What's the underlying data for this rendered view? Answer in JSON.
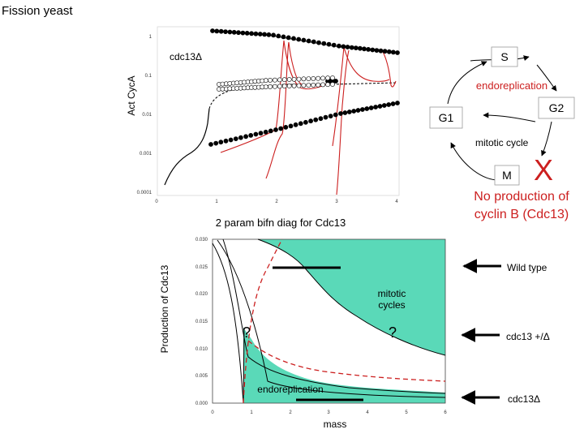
{
  "slide": {
    "title": "Fission yeast"
  },
  "colors": {
    "accent_red": "#cc1f1f",
    "teal_fill": "#5ad9b8",
    "dark": "#000000"
  },
  "top_chart": {
    "ylabel": "Act CycA",
    "annotation": "cdc13Δ",
    "y_ticks": [
      "1",
      "0.1",
      "0.01",
      "0.001",
      "0.0001"
    ],
    "x_ticks": [
      "0",
      "1",
      "2",
      "3",
      "4"
    ]
  },
  "cycle_diagram": {
    "phase_s": "S",
    "phase_g1": "G1",
    "phase_g2": "G2",
    "phase_m": "M",
    "endoreplication": "endoreplication",
    "mitotic_cycle": "mitotic cycle",
    "block_mark": "X",
    "note_line1": "No production of",
    "note_line2": "cyclin B (Cdc13)"
  },
  "bottom_chart": {
    "title": "2 param bifn diag for Cdc13",
    "ylabel": "Production of Cdc13",
    "xlabel": "mass",
    "y_ticks": [
      "0.030",
      "0.025",
      "0.020",
      "0.015",
      "0.010",
      "0.005",
      "0.000"
    ],
    "x_ticks": [
      "0",
      "1",
      "2",
      "3",
      "4",
      "5",
      "6"
    ],
    "label_mitotic": "mitotic cycles",
    "label_endo": "endoreplication",
    "question_left": "?",
    "question_right": "?"
  },
  "arrows": {
    "wild_type": "Wild type",
    "heterozygote": "cdc13 +/Δ",
    "deletion": "cdc13Δ"
  }
}
